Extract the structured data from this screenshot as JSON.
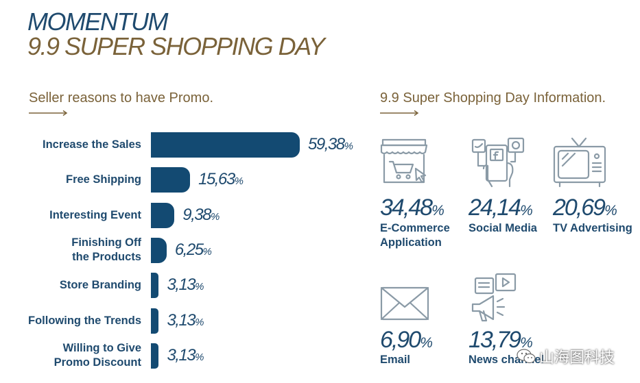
{
  "header": {
    "title_line1": "MOMENTUM",
    "title_line2": "9.9 SUPER SHOPPING DAY"
  },
  "colors": {
    "navy": "#134a72",
    "text_navy": "#1f4a6e",
    "brown": "#7a6239",
    "icon_gray": "#8a9aa6"
  },
  "left_section": {
    "heading": "Seller reasons to have Promo."
  },
  "chart_data": {
    "type": "bar",
    "orientation": "horizontal",
    "categories": [
      "Increase the Sales",
      "Free Shipping",
      "Interesting Event",
      "Finishing Off\nthe Products",
      "Store Branding",
      "Following the Trends",
      "Willing to Give\nPromo Discount"
    ],
    "values": [
      59.38,
      15.63,
      9.38,
      6.25,
      3.13,
      3.13,
      3.13
    ],
    "value_labels": [
      "59,38",
      "15,63",
      "9,38",
      "6,25",
      "3,13",
      "3,13",
      "3,13"
    ],
    "unit": "%",
    "title": "Seller reasons to have Promo.",
    "xlabel": "",
    "ylabel": "",
    "xlim": [
      0,
      60
    ]
  },
  "right_section": {
    "heading": "9.9 Super Shopping Day Information.",
    "items": [
      {
        "value": "34,48",
        "unit": "%",
        "label": "E-Commerce\nApplication",
        "icon": "storefront-cart-icon"
      },
      {
        "value": "24,14",
        "unit": "%",
        "label": "Social Media",
        "icon": "social-media-phone-icon"
      },
      {
        "value": "20,69",
        "unit": "%",
        "label": "TV Advertising",
        "icon": "tv-icon"
      },
      {
        "value": "6,90",
        "unit": "%",
        "label": "Email",
        "icon": "envelope-icon"
      },
      {
        "value": "13,79",
        "unit": "%",
        "label": "News channel",
        "icon": "megaphone-news-icon"
      }
    ]
  },
  "watermark": {
    "text": "山海图科技",
    "icon": "wechat-icon"
  }
}
